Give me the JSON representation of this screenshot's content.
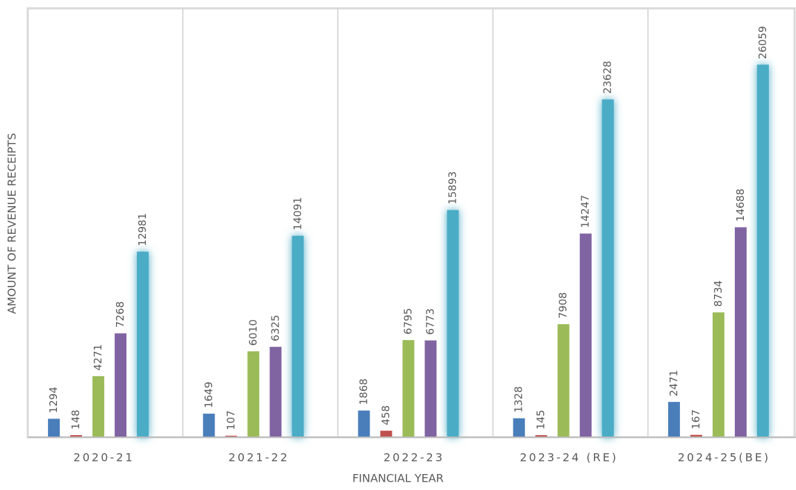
{
  "chart_data": {
    "type": "bar",
    "x_label": "FINANCIAL YEAR",
    "y_label": "AMOUNT OF REVENUE RECEIPTS",
    "categories": [
      "2020-21",
      "2021-22",
      "2022-23",
      "2023-24 (RE)",
      "2024-25(BE)"
    ],
    "series": [
      {
        "color": "#4a7ebb",
        "values": [
          1294,
          1649,
          1868,
          1328,
          2471
        ]
      },
      {
        "color": "#c0504d",
        "values": [
          148,
          107,
          458,
          145,
          167
        ]
      },
      {
        "color": "#9bbb59",
        "values": [
          4271,
          6010,
          6795,
          7908,
          8734
        ]
      },
      {
        "color": "#8064a2",
        "values": [
          7268,
          6325,
          6773,
          14247,
          14688
        ]
      },
      {
        "color": "#4bacc6",
        "values": [
          12981,
          14091,
          15893,
          23628,
          26059
        ]
      }
    ],
    "ylim": [
      0,
      30000
    ]
  }
}
